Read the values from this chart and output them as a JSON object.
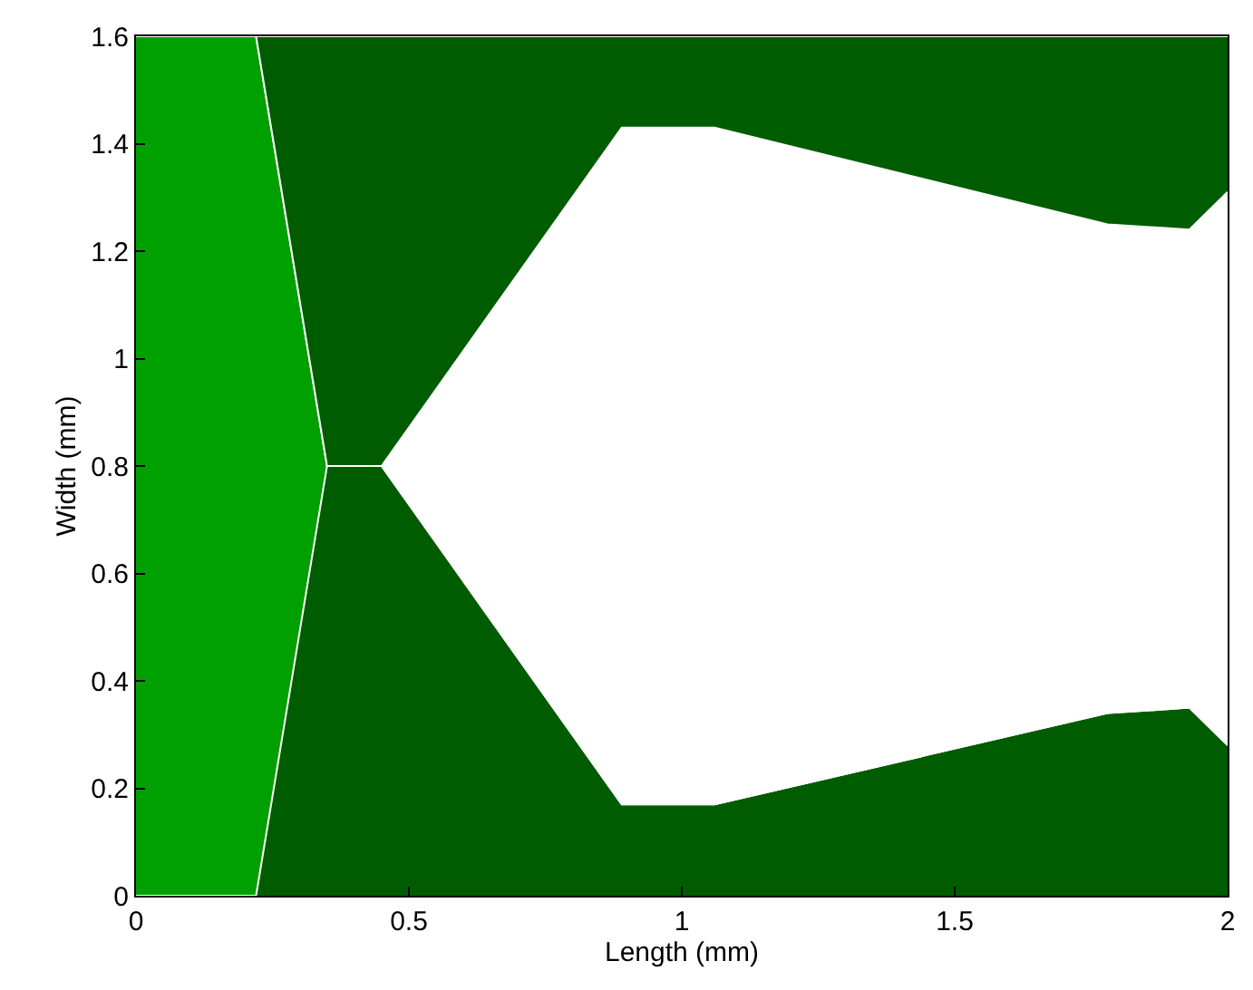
{
  "chart_data": {
    "type": "area",
    "stacked": true,
    "xlabel": "Length (mm)",
    "ylabel": "Width (mm)",
    "xlim": [
      0,
      2
    ],
    "ylim": [
      0,
      1.6
    ],
    "xticks": [
      0,
      0.5,
      1,
      1.5,
      2
    ],
    "yticks": [
      0,
      0.2,
      0.4,
      0.6,
      0.8,
      1,
      1.2,
      1.4,
      1.6
    ],
    "x": [
      0,
      0.22,
      0.35,
      0.45,
      0.89,
      1.06,
      1.78,
      1.93,
      2.0
    ],
    "series": [
      {
        "color": "#005c00",
        "values": [
          0,
          0,
          0.8,
          0.8,
          0.17,
          0.17,
          0.34,
          0.35,
          0.28
        ]
      },
      {
        "color": "#00a000",
        "values": [
          1.6,
          1.6,
          0,
          0,
          0,
          0,
          0,
          0,
          0
        ]
      },
      {
        "color": "#ffffff",
        "values": [
          0,
          0,
          0,
          0,
          1.26,
          1.26,
          0.91,
          0.89,
          1.03
        ]
      },
      {
        "color": "#005c00",
        "values": [
          0,
          0,
          0.8,
          0.8,
          0.17,
          0.17,
          0.35,
          0.36,
          0.29
        ]
      }
    ]
  }
}
